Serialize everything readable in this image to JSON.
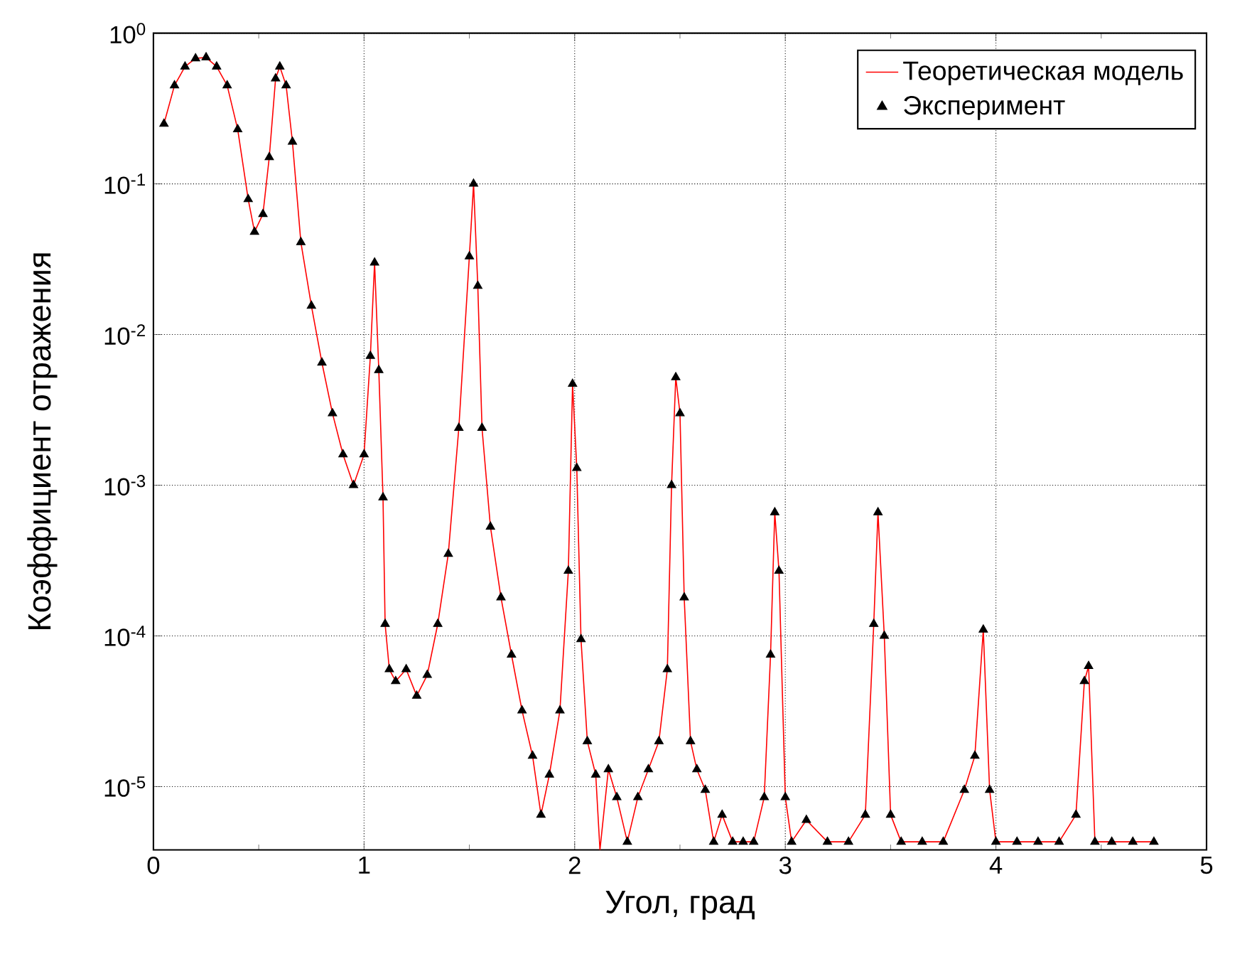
{
  "chart_data": {
    "type": "line",
    "xlabel": "Угол, град",
    "ylabel": "Коэффициент отражения",
    "log": "y",
    "grid": true,
    "legend": "top right",
    "xlim": [
      0,
      5
    ],
    "ylim": [
      3.8e-06,
      1
    ],
    "xticks": [
      0,
      1,
      2,
      3,
      4,
      5
    ],
    "yticks": [
      {
        "value": 1e-05,
        "label": "10$^{-5}$"
      },
      {
        "value": 0.0001,
        "label": "10$^{-4}$"
      },
      {
        "value": 0.001,
        "label": "10$^{-3}$"
      },
      {
        "value": 0.01,
        "label": "10$^{-2}$"
      },
      {
        "value": 0.1,
        "label": "10$^{-1}$"
      },
      {
        "value": 1,
        "label": "10$^{0}$"
      }
    ],
    "x": [
      0.05,
      0.1,
      0.15,
      0.2,
      0.25,
      0.3,
      0.35,
      0.4,
      0.45,
      0.48,
      0.52,
      0.55,
      0.58,
      0.6,
      0.63,
      0.66,
      0.7,
      0.75,
      0.8,
      0.85,
      0.9,
      0.95,
      1.0,
      1.03,
      1.05,
      1.07,
      1.09,
      1.1,
      1.12,
      1.15,
      1.2,
      1.25,
      1.3,
      1.35,
      1.4,
      1.45,
      1.5,
      1.52,
      1.54,
      1.56,
      1.6,
      1.65,
      1.7,
      1.75,
      1.8,
      1.84,
      1.88,
      1.93,
      1.97,
      1.99,
      2.01,
      2.03,
      2.06,
      2.1,
      2.12,
      2.16,
      2.2,
      2.25,
      2.3,
      2.35,
      2.4,
      2.44,
      2.46,
      2.48,
      2.5,
      2.52,
      2.55,
      2.58,
      2.62,
      2.66,
      2.7,
      2.75,
      2.8,
      2.85,
      2.9,
      2.93,
      2.95,
      2.97,
      3.0,
      3.03,
      3.1,
      3.2,
      3.3,
      3.38,
      3.42,
      3.44,
      3.47,
      3.5,
      3.55,
      3.65,
      3.75,
      3.85,
      3.9,
      3.94,
      3.97,
      4.0,
      4.1,
      4.2,
      4.3,
      4.38,
      4.42,
      4.44,
      4.47,
      4.55,
      4.65,
      4.75
    ],
    "series": [
      {
        "name": "Теоретическая модель",
        "color": "#ff0000",
        "marker": "none",
        "values": [
          0.25,
          0.45,
          0.6,
          0.68,
          0.69,
          0.6,
          0.45,
          0.23,
          0.079,
          0.048,
          0.063,
          0.15,
          0.5,
          0.6,
          0.45,
          0.19,
          0.041,
          0.0155,
          0.0065,
          0.003,
          0.0016,
          0.001,
          0.0016,
          0.0072,
          0.03,
          0.0058,
          0.00083,
          0.00012,
          6e-05,
          5e-05,
          6e-05,
          4e-05,
          5.5e-05,
          0.00012,
          0.00035,
          0.0024,
          0.033,
          0.1,
          0.021,
          0.0024,
          0.00053,
          0.00018,
          7.5e-05,
          3.2e-05,
          1.6e-05,
          6.5e-06,
          1.2e-05,
          3.2e-05,
          0.00027,
          0.0047,
          0.0013,
          9.5e-05,
          2e-05,
          1.2e-05,
          3.8e-06,
          1.3e-05,
          8.5e-06,
          4.3e-06,
          8.5e-06,
          1.3e-05,
          2e-05,
          6e-05,
          0.001,
          0.0052,
          0.003,
          0.00018,
          2e-05,
          1.3e-05,
          9.5e-06,
          4.3e-06,
          6.5e-06,
          4.3e-06,
          4.3e-06,
          4.3e-06,
          8.5e-06,
          7.5e-05,
          0.00066,
          0.00027,
          8.5e-06,
          4.3e-06,
          6e-06,
          4.3e-06,
          4.3e-06,
          6.5e-06,
          0.00012,
          0.00066,
          0.0001,
          6.5e-06,
          4.3e-06,
          4.3e-06,
          4.3e-06,
          9.5e-06,
          1.6e-05,
          0.00011,
          9.5e-06,
          4.3e-06,
          4.3e-06,
          4.3e-06,
          4.3e-06,
          6.5e-06,
          5e-05,
          6.3e-05,
          4.3e-06,
          4.3e-06,
          4.3e-06,
          4.3e-06
        ]
      },
      {
        "name": "Эксперимент",
        "type": "scatter",
        "color": "#000000",
        "marker": "triangle",
        "values": [
          0.25,
          0.45,
          0.6,
          0.68,
          0.69,
          0.6,
          0.45,
          0.23,
          0.079,
          0.048,
          0.063,
          0.15,
          0.5,
          0.6,
          0.45,
          0.19,
          0.041,
          0.0155,
          0.0065,
          0.003,
          0.0016,
          0.001,
          0.0016,
          0.0072,
          0.03,
          0.0058,
          0.00083,
          0.00012,
          6e-05,
          5e-05,
          6e-05,
          4e-05,
          5.5e-05,
          0.00012,
          0.00035,
          0.0024,
          0.033,
          0.1,
          0.021,
          0.0024,
          0.00053,
          0.00018,
          7.5e-05,
          3.2e-05,
          1.6e-05,
          6.5e-06,
          1.2e-05,
          3.2e-05,
          0.00027,
          0.0047,
          0.0013,
          9.5e-05,
          2e-05,
          1.2e-05,
          null,
          1.3e-05,
          8.5e-06,
          4.3e-06,
          8.5e-06,
          1.3e-05,
          2e-05,
          6e-05,
          0.001,
          0.0052,
          0.003,
          0.00018,
          2e-05,
          1.3e-05,
          9.5e-06,
          4.3e-06,
          6.5e-06,
          4.3e-06,
          4.3e-06,
          4.3e-06,
          8.5e-06,
          7.5e-05,
          0.00066,
          0.00027,
          8.5e-06,
          4.3e-06,
          6e-06,
          4.3e-06,
          4.3e-06,
          6.5e-06,
          0.00012,
          0.00066,
          0.0001,
          6.5e-06,
          4.3e-06,
          4.3e-06,
          4.3e-06,
          9.5e-06,
          1.6e-05,
          0.00011,
          9.5e-06,
          4.3e-06,
          4.3e-06,
          4.3e-06,
          4.3e-06,
          6.5e-06,
          5e-05,
          6.3e-05,
          4.3e-06,
          4.3e-06,
          4.3e-06,
          4.3e-06
        ]
      }
    ]
  }
}
